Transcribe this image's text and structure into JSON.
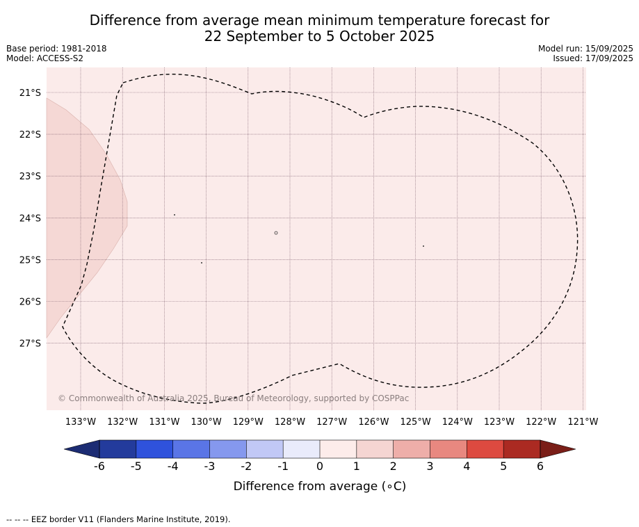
{
  "title": {
    "line1": "Difference from average mean minimum temperature forecast for",
    "line2": "22 September to 5 October 2025"
  },
  "meta_left": {
    "base_period": "Base period: 1981-2018",
    "model": "Model: ACCESS-S2"
  },
  "meta_right": {
    "model_run": "Model run: 15/09/2025",
    "issued": "Issued: 17/09/2025"
  },
  "map": {
    "lat_labels": [
      "21°S",
      "22°S",
      "23°S",
      "24°S",
      "25°S",
      "26°S",
      "27°S"
    ],
    "lon_labels": [
      "133°W",
      "132°W",
      "131°W",
      "130°W",
      "129°W",
      "128°W",
      "127°W",
      "126°W",
      "125°W",
      "124°W",
      "123°W",
      "122°W",
      "121°W"
    ],
    "background_color": "#fbebea",
    "anomaly_patch_color": "#f5d8d5",
    "copyright": "© Commonwealth of Australia 2025, Bureau of Meteorology, supported by COSPPac"
  },
  "colorbar": {
    "colors": [
      "#233b9c",
      "#2f52dc",
      "#5a75e6",
      "#8598ee",
      "#c1c8f6",
      "#e9ebfb",
      "#fdecea",
      "#f5d5d2",
      "#eeaea9",
      "#e88880",
      "#dd4a40",
      "#ab2a22"
    ],
    "under_color": "#1c2c73",
    "over_color": "#7a1e18",
    "tick_labels": [
      "-6",
      "-5",
      "-4",
      "-3",
      "-2",
      "-1",
      "0",
      "1",
      "2",
      "3",
      "4",
      "5",
      "6"
    ],
    "label": "Difference from average (∘C)"
  },
  "footer": {
    "legend_symbol": "-- -- --",
    "eez_text": "EEZ border V11 (Flanders Marine Institute, 2019)."
  }
}
